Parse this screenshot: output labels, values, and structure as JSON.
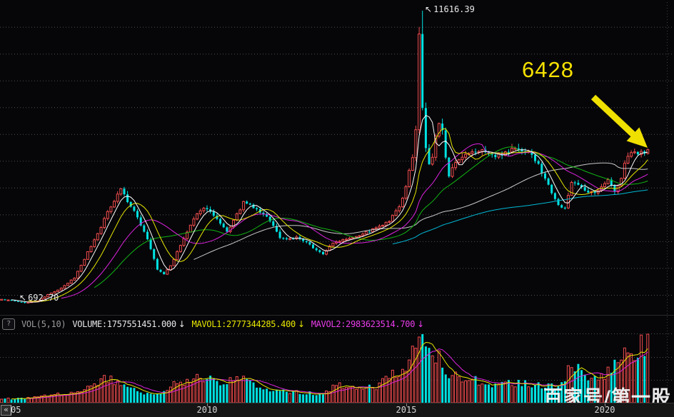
{
  "pager": {
    "label": "«"
  },
  "watermark": {
    "text": "百家号/第一股"
  },
  "annotations": {
    "peak_label": "11616.39",
    "target_label": "6428",
    "low_label": "692.70",
    "pointer_icon": "↖",
    "arrow_color": "#f0e000"
  },
  "vol_header": {
    "help": "?",
    "indicator": "VOL(5,10)",
    "volume": "VOLUME:1757551451.000",
    "mavol1": "MAVOL1:2777344285.400",
    "mavol2": "MAVOL2:2983623514.700",
    "down_arrow": "↓"
  },
  "chart_data": {
    "type": "candlestick",
    "title": "",
    "x_axis": {
      "start": 2004.75,
      "months": 197,
      "ticks": [
        {
          "t": 2005,
          "label": "05"
        },
        {
          "t": 2010,
          "label": "2010"
        },
        {
          "t": 2015,
          "label": "2015"
        },
        {
          "t": 2020,
          "label": "2020"
        }
      ]
    },
    "ylim": [
      692.7,
      11616.39
    ],
    "grid_step": 1000,
    "peak": {
      "t": 2015.417,
      "high": 11616.39
    },
    "trough": {
      "t": 2005.417,
      "low": 692.7
    },
    "last_close": 6428,
    "price_anchors": [
      [
        2004.75,
        850
      ],
      [
        2005.0,
        820
      ],
      [
        2005.25,
        760
      ],
      [
        2005.417,
        720
      ],
      [
        2005.75,
        790
      ],
      [
        2006.0,
        1020
      ],
      [
        2006.333,
        1250
      ],
      [
        2006.667,
        1650
      ],
      [
        2007.0,
        2600
      ],
      [
        2007.25,
        3300
      ],
      [
        2007.5,
        4100
      ],
      [
        2007.833,
        5000
      ],
      [
        2008.0,
        4500
      ],
      [
        2008.25,
        3900
      ],
      [
        2008.5,
        3100
      ],
      [
        2008.75,
        1950
      ],
      [
        2008.917,
        1780
      ],
      [
        2009.083,
        2100
      ],
      [
        2009.333,
        2850
      ],
      [
        2009.583,
        3600
      ],
      [
        2009.833,
        4200
      ],
      [
        2010.0,
        4250
      ],
      [
        2010.25,
        3800
      ],
      [
        2010.5,
        3350
      ],
      [
        2010.75,
        4000
      ],
      [
        2010.917,
        4450
      ],
      [
        2011.083,
        4350
      ],
      [
        2011.333,
        4100
      ],
      [
        2011.583,
        3800
      ],
      [
        2011.833,
        3150
      ],
      [
        2012.0,
        3100
      ],
      [
        2012.25,
        3150
      ],
      [
        2012.5,
        2950
      ],
      [
        2012.75,
        2700
      ],
      [
        2012.917,
        2520
      ],
      [
        2013.083,
        2850
      ],
      [
        2013.333,
        3050
      ],
      [
        2013.583,
        3150
      ],
      [
        2013.833,
        3250
      ],
      [
        2014.083,
        3400
      ],
      [
        2014.333,
        3550
      ],
      [
        2014.583,
        3750
      ],
      [
        2014.833,
        4300
      ],
      [
        2015.0,
        5000
      ],
      [
        2015.167,
        6200
      ],
      [
        2015.25,
        7200
      ],
      [
        2015.333,
        10800
      ],
      [
        2015.417,
        7900
      ],
      [
        2015.5,
        6500
      ],
      [
        2015.583,
        5900
      ],
      [
        2015.667,
        6100
      ],
      [
        2015.75,
        6900
      ],
      [
        2015.833,
        7400
      ],
      [
        2015.917,
        7100
      ],
      [
        2016.0,
        6200
      ],
      [
        2016.083,
        5500
      ],
      [
        2016.25,
        5900
      ],
      [
        2016.5,
        6200
      ],
      [
        2016.75,
        6350
      ],
      [
        2017.0,
        6400
      ],
      [
        2017.25,
        6150
      ],
      [
        2017.5,
        6350
      ],
      [
        2017.75,
        6500
      ],
      [
        2017.917,
        6350
      ],
      [
        2018.083,
        6400
      ],
      [
        2018.333,
        5850
      ],
      [
        2018.583,
        5100
      ],
      [
        2018.833,
        4400
      ],
      [
        2018.99,
        4150
      ],
      [
        2019.167,
        5250
      ],
      [
        2019.333,
        5150
      ],
      [
        2019.5,
        4850
      ],
      [
        2019.75,
        4800
      ],
      [
        2019.917,
        5100
      ],
      [
        2020.083,
        5300
      ],
      [
        2020.25,
        4850
      ],
      [
        2020.417,
        5350
      ],
      [
        2020.55,
        6200
      ],
      [
        2020.667,
        6350
      ],
      [
        2020.833,
        6200
      ],
      [
        2020.917,
        6400
      ],
      [
        2021.0,
        6250
      ],
      [
        2021.083,
        6428
      ]
    ],
    "volume_anchors": [
      [
        2004.75,
        0.05
      ],
      [
        2005.5,
        0.07
      ],
      [
        2006.0,
        0.1
      ],
      [
        2006.5,
        0.13
      ],
      [
        2007.0,
        0.22
      ],
      [
        2007.5,
        0.35
      ],
      [
        2007.83,
        0.3
      ],
      [
        2008.2,
        0.17
      ],
      [
        2008.8,
        0.12
      ],
      [
        2009.3,
        0.3
      ],
      [
        2009.8,
        0.38
      ],
      [
        2010.3,
        0.28
      ],
      [
        2010.9,
        0.33
      ],
      [
        2011.5,
        0.2
      ],
      [
        2012.0,
        0.16
      ],
      [
        2012.8,
        0.13
      ],
      [
        2013.3,
        0.24
      ],
      [
        2013.8,
        0.21
      ],
      [
        2014.3,
        0.24
      ],
      [
        2014.8,
        0.45
      ],
      [
        2015.0,
        0.55
      ],
      [
        2015.25,
        0.78
      ],
      [
        2015.45,
        1.0
      ],
      [
        2015.6,
        0.85
      ],
      [
        2015.9,
        0.55
      ],
      [
        2016.1,
        0.45
      ],
      [
        2016.5,
        0.36
      ],
      [
        2017.0,
        0.3
      ],
      [
        2017.5,
        0.27
      ],
      [
        2018.0,
        0.29
      ],
      [
        2018.5,
        0.24
      ],
      [
        2018.9,
        0.27
      ],
      [
        2019.2,
        0.58
      ],
      [
        2019.4,
        0.42
      ],
      [
        2019.8,
        0.34
      ],
      [
        2020.1,
        0.48
      ],
      [
        2020.5,
        0.72
      ],
      [
        2020.7,
        0.62
      ],
      [
        2020.9,
        0.82
      ],
      [
        2021.083,
        0.92
      ]
    ],
    "moving_averages": [
      {
        "window": 5,
        "color": "#ffffff"
      },
      {
        "window": 10,
        "color": "#e6e600"
      },
      {
        "window": 20,
        "color": "#dd22dd"
      },
      {
        "window": 30,
        "color": "#11b411"
      },
      {
        "window": 60,
        "color": "#c8c8c8"
      },
      {
        "window": 120,
        "color": "#00b8d4"
      }
    ],
    "volume_mas": [
      {
        "window": 5,
        "color": "#e6e600"
      },
      {
        "window": 10,
        "color": "#dd22dd"
      }
    ],
    "colors": {
      "up": "#f14c4c",
      "down": "#00e2e2",
      "grid": "#4f4f4f"
    }
  }
}
